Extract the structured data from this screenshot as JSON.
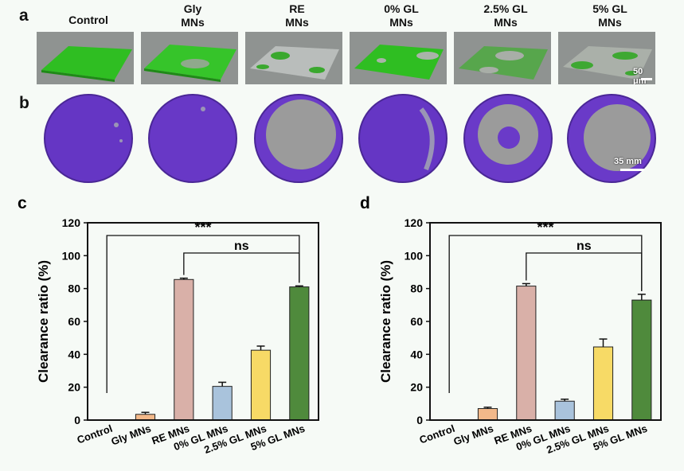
{
  "panel_a": {
    "letter": "a",
    "columns": [
      "Control",
      "Gly\nMNs",
      "RE\nMNs",
      "0% GL\nMNs",
      "2.5% GL\nMNs",
      "5% GL\nMNs"
    ],
    "scale_bar": "50 μm"
  },
  "panel_b": {
    "letter": "b",
    "scale_bar": "35 mm"
  },
  "colors": {
    "biofilm_green": "#2fbe22",
    "stain_purple": "#6a36c8",
    "cleared_gray": "#9a9a9a"
  },
  "chart_data": [
    {
      "panel": "c",
      "type": "bar",
      "categories": [
        "Control",
        "Gly MNs",
        "RE MNs",
        "0% GL MNs",
        "2.5% GL MNs",
        "5% GL MNs"
      ],
      "values": [
        0,
        3.5,
        85.5,
        20.5,
        42.5,
        81
      ],
      "errors": [
        0,
        1.2,
        0.8,
        2.5,
        2.5,
        0.6
      ],
      "colors": [
        "#ffffff",
        "#f3b98a",
        "#d9b0a8",
        "#a9c3dc",
        "#f7da66",
        "#4f8a3c"
      ],
      "xlabel": "",
      "ylabel": "Clearance ratio (%)",
      "ylim": [
        0,
        120
      ],
      "yticks": [
        0,
        20,
        40,
        60,
        80,
        100,
        120
      ],
      "significance": [
        {
          "label": "***",
          "from": "Control",
          "to": "5% GL MNs"
        },
        {
          "label": "ns",
          "from": "RE MNs",
          "to": "5% GL MNs"
        }
      ]
    },
    {
      "panel": "d",
      "type": "bar",
      "categories": [
        "Control",
        "Gly MNs",
        "RE MNs",
        "0% GL MNs",
        "2.5% GL MNs",
        "5% GL MNs"
      ],
      "values": [
        0,
        7,
        81.5,
        11.5,
        44.5,
        73
      ],
      "errors": [
        0,
        0.8,
        1.5,
        1.2,
        4.8,
        3.5
      ],
      "colors": [
        "#ffffff",
        "#f3b98a",
        "#d9b0a8",
        "#a9c3dc",
        "#f7da66",
        "#4f8a3c"
      ],
      "xlabel": "",
      "ylabel": "Clearance ratio (%)",
      "ylim": [
        0,
        120
      ],
      "yticks": [
        0,
        20,
        40,
        60,
        80,
        100,
        120
      ],
      "significance": [
        {
          "label": "***",
          "from": "Control",
          "to": "5% GL MNs"
        },
        {
          "label": "ns",
          "from": "RE MNs",
          "to": "5% GL MNs"
        }
      ]
    }
  ]
}
